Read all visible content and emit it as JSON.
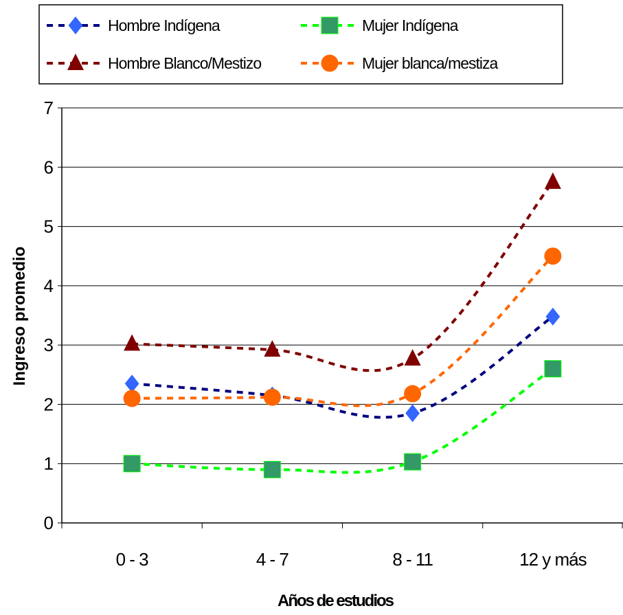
{
  "chart_data": {
    "type": "line",
    "categories": [
      "0 - 3",
      "4 - 7",
      "8 - 11",
      "12 y más"
    ],
    "xlabel": "Años de estudios",
    "ylabel": "Ingreso promedio",
    "ylim": [
      0,
      7
    ],
    "yticks": [
      0,
      1,
      2,
      3,
      4,
      5,
      6,
      7
    ],
    "grid": "horizontal",
    "legend_position": "top",
    "series": [
      {
        "name": "Hombre Indígena",
        "values": [
          2.35,
          2.15,
          1.85,
          3.48
        ],
        "color": "#000080",
        "marker_color": "#3366FF",
        "marker": "diamond"
      },
      {
        "name": "Mujer Indígena",
        "values": [
          1.0,
          0.9,
          1.03,
          2.6
        ],
        "color": "#00FF00",
        "marker_color": "#339966",
        "marker": "square"
      },
      {
        "name": "Hombre Blanco/Mestizo",
        "values": [
          3.02,
          2.92,
          2.77,
          5.75
        ],
        "color": "#800000",
        "marker_color": "#800000",
        "marker": "triangle"
      },
      {
        "name": "Mujer blanca/mestiza",
        "values": [
          2.1,
          2.12,
          2.18,
          4.5
        ],
        "color": "#FF6600",
        "marker_color": "#FF6600",
        "marker": "circle"
      }
    ]
  }
}
